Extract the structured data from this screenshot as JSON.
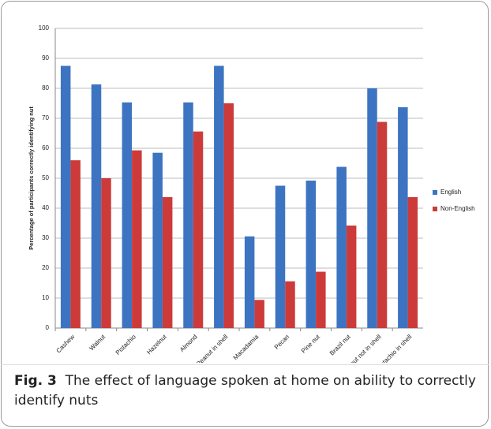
{
  "chart_data": {
    "type": "bar",
    "y_label": "Percentage of participants correctly identifying nut",
    "categories": [
      "Cashew",
      "Walnut",
      "Pistachio",
      "Hazelnut",
      "Almond",
      "Peanut in shell",
      "Macadamia",
      "Pecan",
      "Pine nut",
      "Brazil nut",
      "Peanut not in shell",
      "Pistachio in shell"
    ],
    "series": [
      {
        "name": "English",
        "color": "#3c74c2",
        "values": [
          87.5,
          81.3,
          75.3,
          58.5,
          75.3,
          87.5,
          30.6,
          47.5,
          49.2,
          53.8,
          80,
          73.7
        ]
      },
      {
        "name": "Non-English",
        "color": "#cc3b3a",
        "values": [
          56,
          50,
          59.3,
          43.7,
          65.6,
          75,
          9.4,
          15.6,
          18.8,
          34.2,
          68.8,
          43.7
        ]
      }
    ],
    "ylim": [
      0,
      100
    ],
    "yticks": [
      0,
      10,
      20,
      30,
      40,
      50,
      60,
      70,
      80,
      90,
      100
    ],
    "grid": true,
    "legend": "right"
  },
  "caption": {
    "label": "Fig. 3",
    "text": "The effect of language spoken at home on ability to correctly identify nuts"
  }
}
